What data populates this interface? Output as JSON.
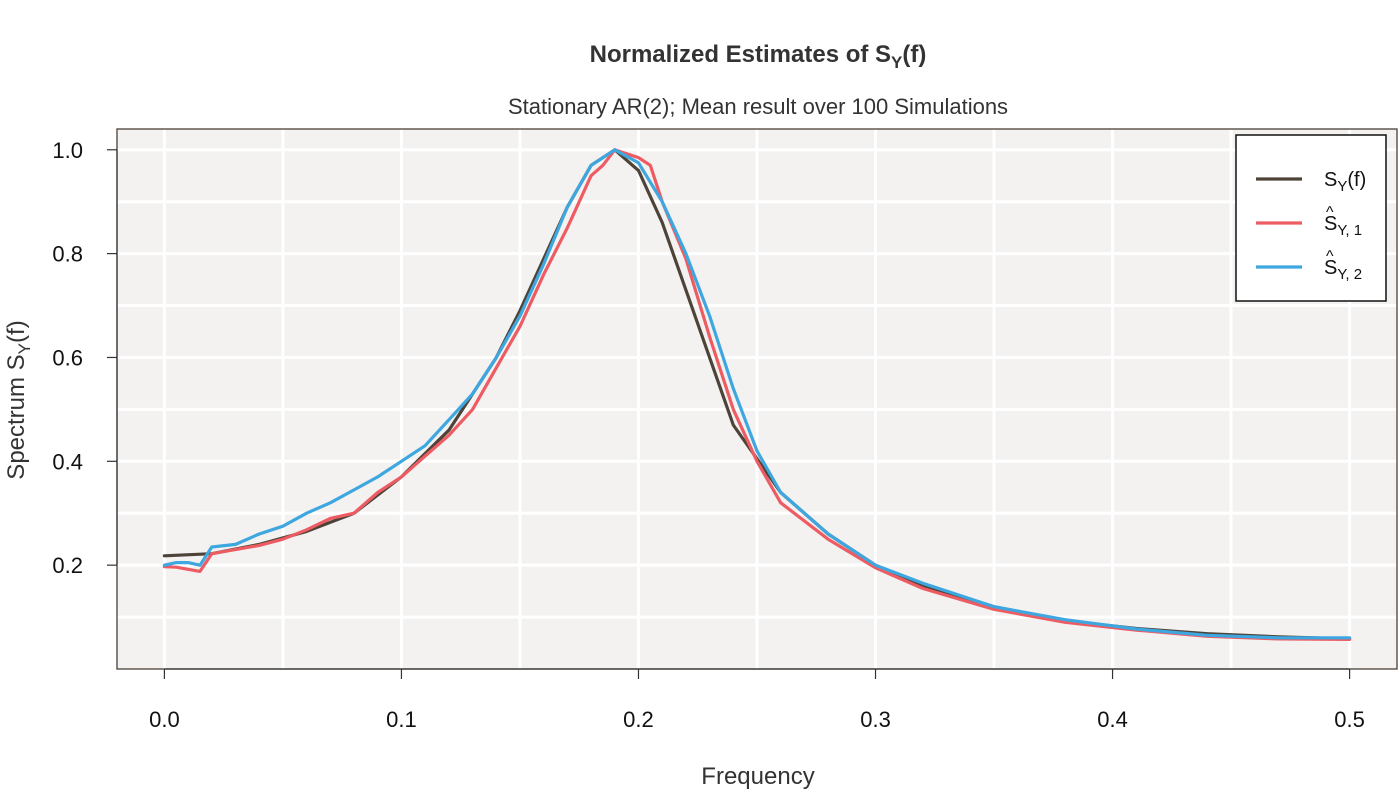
{
  "chart_data": {
    "type": "line",
    "title_main": "Normalized Estimates of S",
    "title_sub": "Y",
    "title_tail": "(f)",
    "subtitle": "Stationary AR(2); Mean result over 100 Simulations",
    "xlabel": "Frequency",
    "ylabel_main": "Spectrum S",
    "ylabel_sub": "Y",
    "ylabel_tail": "(f)",
    "xlim": [
      -0.02,
      0.52
    ],
    "ylim": [
      0.0,
      1.04
    ],
    "x_ticks": [
      0.0,
      0.1,
      0.2,
      0.3,
      0.4,
      0.5
    ],
    "x_tick_labels": [
      "0.0",
      "0.1",
      "0.2",
      "0.3",
      "0.4",
      "0.5"
    ],
    "y_ticks": [
      0.2,
      0.4,
      0.6,
      0.8,
      1.0
    ],
    "y_tick_labels": [
      "0.2",
      "0.4",
      "0.6",
      "0.8",
      "1.0"
    ],
    "grid": true,
    "legend_position": "top-right",
    "colors": {
      "panel_bg": "#f3f2f1",
      "grid": "#ffffff",
      "frame": "#4a4036"
    },
    "series": [
      {
        "name": "S",
        "legend_main": "S",
        "legend_hat": "",
        "legend_sub": "Y",
        "legend_tail": "(f)",
        "color": "#4d4338",
        "x": [
          0.0,
          0.02,
          0.04,
          0.06,
          0.08,
          0.1,
          0.12,
          0.14,
          0.15,
          0.16,
          0.17,
          0.18,
          0.19,
          0.2,
          0.21,
          0.22,
          0.23,
          0.24,
          0.26,
          0.28,
          0.3,
          0.32,
          0.35,
          0.38,
          0.41,
          0.44,
          0.47,
          0.5
        ],
        "values": [
          0.218,
          0.222,
          0.24,
          0.265,
          0.3,
          0.37,
          0.46,
          0.6,
          0.69,
          0.79,
          0.89,
          0.97,
          1.0,
          0.96,
          0.86,
          0.73,
          0.6,
          0.47,
          0.34,
          0.26,
          0.2,
          0.16,
          0.12,
          0.093,
          0.078,
          0.068,
          0.062,
          0.058
        ]
      },
      {
        "name": "ŜY, 1",
        "legend_main": "S",
        "legend_hat": "^",
        "legend_sub": "Y, 1",
        "legend_tail": "",
        "color": "#ee5c63",
        "x": [
          0.0,
          0.005,
          0.01,
          0.015,
          0.02,
          0.03,
          0.04,
          0.05,
          0.06,
          0.07,
          0.08,
          0.09,
          0.1,
          0.11,
          0.12,
          0.13,
          0.14,
          0.15,
          0.16,
          0.17,
          0.18,
          0.185,
          0.19,
          0.2,
          0.205,
          0.21,
          0.22,
          0.23,
          0.24,
          0.25,
          0.26,
          0.28,
          0.3,
          0.32,
          0.35,
          0.38,
          0.41,
          0.44,
          0.47,
          0.5
        ],
        "values": [
          0.197,
          0.196,
          0.192,
          0.188,
          0.222,
          0.23,
          0.238,
          0.25,
          0.268,
          0.29,
          0.3,
          0.34,
          0.37,
          0.41,
          0.45,
          0.5,
          0.58,
          0.66,
          0.76,
          0.85,
          0.95,
          0.97,
          1.0,
          0.985,
          0.97,
          0.9,
          0.79,
          0.64,
          0.5,
          0.4,
          0.32,
          0.25,
          0.195,
          0.155,
          0.115,
          0.09,
          0.075,
          0.063,
          0.058,
          0.057
        ]
      },
      {
        "name": "ŜY, 2",
        "legend_main": "S",
        "legend_hat": "^",
        "legend_sub": "Y, 2",
        "legend_tail": "",
        "color": "#3fa7e0",
        "x": [
          0.0,
          0.005,
          0.01,
          0.015,
          0.02,
          0.03,
          0.04,
          0.05,
          0.06,
          0.07,
          0.08,
          0.09,
          0.1,
          0.11,
          0.12,
          0.13,
          0.14,
          0.15,
          0.16,
          0.17,
          0.18,
          0.185,
          0.19,
          0.2,
          0.21,
          0.22,
          0.23,
          0.24,
          0.25,
          0.26,
          0.28,
          0.3,
          0.32,
          0.35,
          0.38,
          0.41,
          0.44,
          0.47,
          0.5
        ],
        "values": [
          0.2,
          0.205,
          0.205,
          0.2,
          0.235,
          0.24,
          0.26,
          0.275,
          0.3,
          0.32,
          0.345,
          0.37,
          0.4,
          0.43,
          0.48,
          0.53,
          0.6,
          0.68,
          0.78,
          0.89,
          0.97,
          0.985,
          1.0,
          0.975,
          0.9,
          0.8,
          0.68,
          0.54,
          0.42,
          0.34,
          0.26,
          0.2,
          0.165,
          0.12,
          0.095,
          0.077,
          0.065,
          0.06,
          0.06
        ]
      }
    ]
  }
}
